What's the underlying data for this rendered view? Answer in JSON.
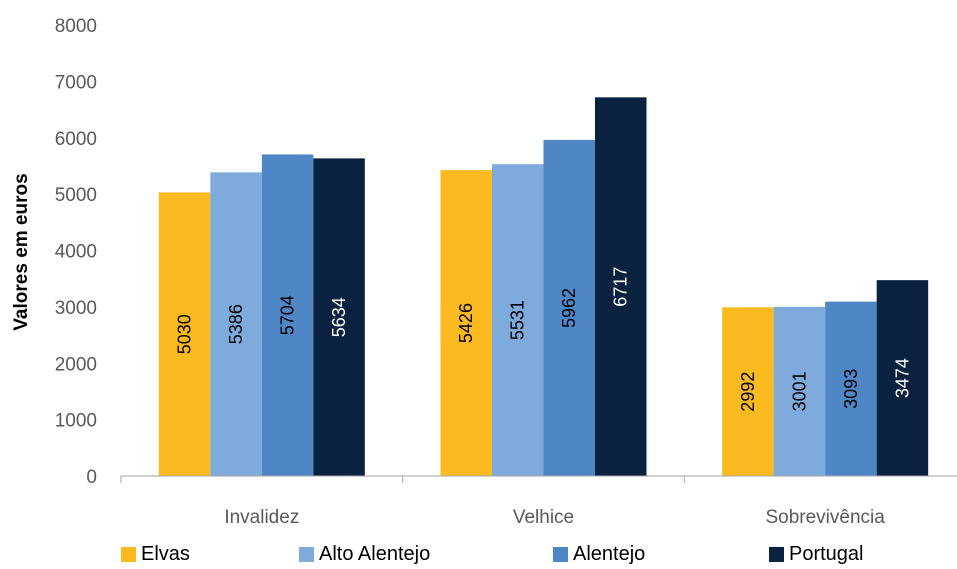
{
  "chart_data": {
    "type": "bar",
    "categories": [
      "Invalidez",
      "Velhice",
      "Sobrevivência"
    ],
    "ylabel": "Valores em euros",
    "ylim": [
      0,
      8000
    ],
    "yticks": [
      0,
      1000,
      2000,
      3000,
      4000,
      5000,
      6000,
      7000,
      8000
    ],
    "grid": false,
    "legend_position": "bottom",
    "series": [
      {
        "name": "Elvas",
        "color": "#FBBA1F",
        "label_color": "#000000",
        "values": [
          5030,
          5426,
          2992
        ]
      },
      {
        "name": "Alto Alentejo",
        "color": "#7EABDB",
        "label_color": "#000000",
        "values": [
          5386,
          5531,
          3001
        ]
      },
      {
        "name": "Alentejo",
        "color": "#4E86C6",
        "label_color": "#000000",
        "values": [
          5704,
          5962,
          3093
        ]
      },
      {
        "name": "Portugal",
        "color": "#0A2240",
        "label_color": "#ffffff",
        "values": [
          5634,
          6717,
          3474
        ]
      }
    ]
  }
}
